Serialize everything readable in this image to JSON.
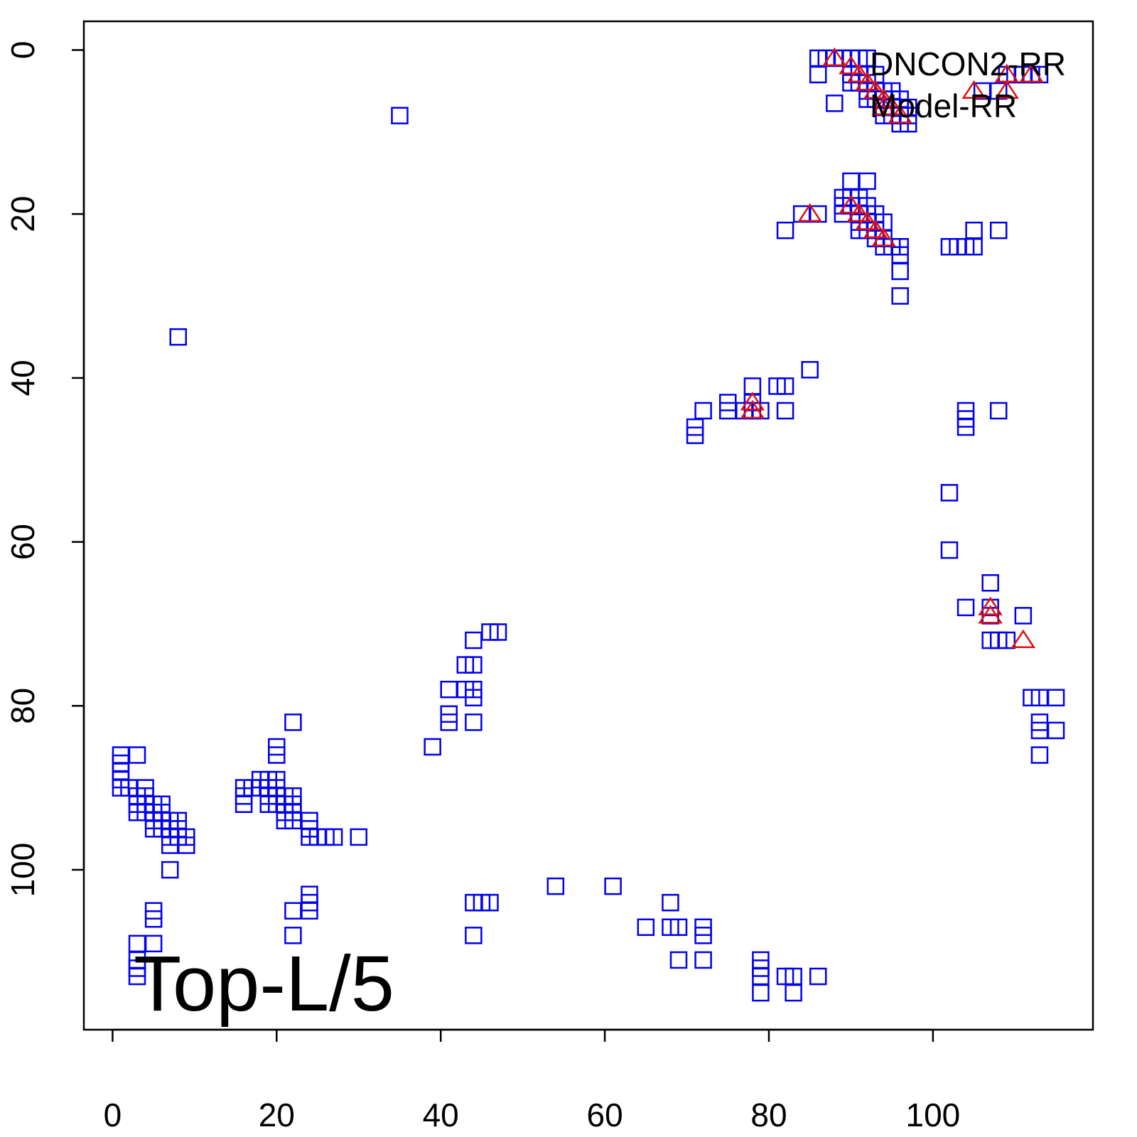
{
  "chart_data": {
    "type": "scatter",
    "title": "",
    "xlabel": "",
    "ylabel": "",
    "xlim": [
      -3.5,
      119.5
    ],
    "ylim": [
      -3.5,
      119.5
    ],
    "y_reversed": true,
    "grid": false,
    "x_ticks": [
      0,
      20,
      40,
      60,
      80,
      100
    ],
    "y_ticks": [
      0,
      20,
      40,
      60,
      80,
      100
    ],
    "legend": {
      "placement": "top-right",
      "entries": [
        "DNCON2-RR",
        "Model-RR"
      ]
    },
    "annotation": "Top-L/5",
    "colors": {
      "squares": "#0000ee",
      "triangles": "#e01010"
    },
    "series": [
      {
        "marker": "square",
        "points": [
          [
            35,
            8
          ],
          [
            8,
            35
          ],
          [
            86,
            1
          ],
          [
            87,
            1
          ],
          [
            88,
            1
          ],
          [
            89,
            1
          ],
          [
            90,
            1
          ],
          [
            91,
            1
          ],
          [
            92,
            1
          ],
          [
            86,
            3
          ],
          [
            90,
            3
          ],
          [
            91,
            3
          ],
          [
            93,
            3
          ],
          [
            90,
            4
          ],
          [
            91,
            4
          ],
          [
            92,
            4
          ],
          [
            93,
            5
          ],
          [
            92,
            5
          ],
          [
            94,
            5
          ],
          [
            95,
            5
          ],
          [
            92,
            6
          ],
          [
            93,
            6
          ],
          [
            94,
            6
          ],
          [
            95,
            6
          ],
          [
            96,
            6
          ],
          [
            88,
            6.5
          ],
          [
            94,
            7
          ],
          [
            95,
            7
          ],
          [
            96,
            7
          ],
          [
            97,
            7
          ],
          [
            94,
            8
          ],
          [
            95,
            8
          ],
          [
            96,
            8
          ],
          [
            97,
            8
          ],
          [
            96,
            9
          ],
          [
            97,
            9
          ],
          [
            109,
            3
          ],
          [
            110,
            3
          ],
          [
            111,
            3
          ],
          [
            112,
            3
          ],
          [
            113,
            3
          ],
          [
            106,
            5
          ],
          [
            108,
            5
          ],
          [
            90,
            16
          ],
          [
            92,
            16
          ],
          [
            89,
            18
          ],
          [
            90,
            18
          ],
          [
            91,
            18
          ],
          [
            89,
            19
          ],
          [
            90,
            19
          ],
          [
            92,
            19
          ],
          [
            89,
            20
          ],
          [
            91,
            20
          ],
          [
            92,
            20
          ],
          [
            93,
            20
          ],
          [
            84,
            20
          ],
          [
            86,
            20
          ],
          [
            91,
            21
          ],
          [
            92,
            21
          ],
          [
            94,
            21
          ],
          [
            91,
            22
          ],
          [
            92,
            22
          ],
          [
            93,
            22
          ],
          [
            82,
            22
          ],
          [
            93,
            23
          ],
          [
            94,
            23
          ],
          [
            94,
            24
          ],
          [
            95,
            24
          ],
          [
            96,
            24
          ],
          [
            96,
            25
          ],
          [
            96,
            27
          ],
          [
            96,
            30
          ],
          [
            102,
            24
          ],
          [
            103,
            24
          ],
          [
            104,
            24
          ],
          [
            105,
            24
          ],
          [
            105,
            22
          ],
          [
            108,
            22
          ],
          [
            85,
            39
          ],
          [
            78,
            41
          ],
          [
            81,
            41
          ],
          [
            82,
            41
          ],
          [
            75,
            43
          ],
          [
            78,
            43
          ],
          [
            75,
            44
          ],
          [
            72,
            44
          ],
          [
            77,
            44
          ],
          [
            78,
            44
          ],
          [
            79,
            44
          ],
          [
            82,
            44
          ],
          [
            71,
            46
          ],
          [
            71,
            47
          ],
          [
            104,
            44
          ],
          [
            104,
            45
          ],
          [
            104,
            46
          ],
          [
            108,
            44
          ],
          [
            102,
            54
          ],
          [
            102,
            61
          ],
          [
            107,
            65
          ],
          [
            104,
            68
          ],
          [
            107,
            68
          ],
          [
            107,
            69
          ],
          [
            111,
            69
          ],
          [
            107,
            72
          ],
          [
            108,
            72
          ],
          [
            109,
            72
          ],
          [
            112,
            79
          ],
          [
            113,
            79
          ],
          [
            115,
            79
          ],
          [
            113,
            82
          ],
          [
            113,
            83
          ],
          [
            115,
            83
          ],
          [
            113,
            86
          ],
          [
            44,
            72
          ],
          [
            46,
            71
          ],
          [
            47,
            71
          ],
          [
            43,
            75
          ],
          [
            44,
            75
          ],
          [
            41,
            78
          ],
          [
            43,
            78
          ],
          [
            44,
            78
          ],
          [
            44,
            79
          ],
          [
            41,
            81
          ],
          [
            41,
            82
          ],
          [
            44,
            82
          ],
          [
            39,
            85
          ],
          [
            1,
            86
          ],
          [
            3,
            86
          ],
          [
            1,
            87
          ],
          [
            1,
            88
          ],
          [
            1,
            89
          ],
          [
            1,
            90
          ],
          [
            2,
            90
          ],
          [
            4,
            90
          ],
          [
            3,
            91
          ],
          [
            4,
            91
          ],
          [
            3,
            92
          ],
          [
            4,
            92
          ],
          [
            5,
            92
          ],
          [
            6,
            92
          ],
          [
            3,
            93
          ],
          [
            4,
            93
          ],
          [
            5,
            93
          ],
          [
            6,
            93
          ],
          [
            5,
            94
          ],
          [
            6,
            94
          ],
          [
            7,
            94
          ],
          [
            8,
            94
          ],
          [
            5,
            95
          ],
          [
            6,
            95
          ],
          [
            7,
            95
          ],
          [
            8,
            95
          ],
          [
            7,
            96
          ],
          [
            8,
            96
          ],
          [
            9,
            96
          ],
          [
            7,
            97
          ],
          [
            9,
            97
          ],
          [
            7,
            100
          ],
          [
            20,
            85
          ],
          [
            20,
            86
          ],
          [
            18,
            89
          ],
          [
            19,
            89
          ],
          [
            20,
            89
          ],
          [
            16,
            90
          ],
          [
            17,
            90
          ],
          [
            18,
            90
          ],
          [
            19,
            90
          ],
          [
            20,
            90
          ],
          [
            16,
            91
          ],
          [
            19,
            91
          ],
          [
            20,
            91
          ],
          [
            21,
            91
          ],
          [
            22,
            91
          ],
          [
            16,
            92
          ],
          [
            19,
            92
          ],
          [
            20,
            92
          ],
          [
            21,
            92
          ],
          [
            22,
            92
          ],
          [
            21,
            93
          ],
          [
            22,
            93
          ],
          [
            21,
            94
          ],
          [
            22,
            94
          ],
          [
            24,
            94
          ],
          [
            24,
            95
          ],
          [
            24,
            96
          ],
          [
            25,
            96
          ],
          [
            26,
            96
          ],
          [
            27,
            96
          ],
          [
            30,
            96
          ],
          [
            22,
            82
          ],
          [
            5,
            105
          ],
          [
            5,
            106
          ],
          [
            3,
            109
          ],
          [
            5,
            109
          ],
          [
            3,
            111
          ],
          [
            3,
            112
          ],
          [
            3,
            113
          ],
          [
            22,
            105
          ],
          [
            24,
            103
          ],
          [
            24,
            104
          ],
          [
            24,
            105
          ],
          [
            22,
            108
          ],
          [
            44,
            104
          ],
          [
            45,
            104
          ],
          [
            46,
            104
          ],
          [
            44,
            108
          ],
          [
            54,
            102
          ],
          [
            61,
            102
          ],
          [
            68,
            104
          ],
          [
            65,
            107
          ],
          [
            68,
            107
          ],
          [
            69,
            107
          ],
          [
            72,
            107
          ],
          [
            72,
            108
          ],
          [
            69,
            111
          ],
          [
            72,
            111
          ],
          [
            79,
            111
          ],
          [
            79,
            112
          ],
          [
            79,
            113
          ],
          [
            82,
            113
          ],
          [
            83,
            113
          ],
          [
            86,
            113
          ],
          [
            79,
            115
          ],
          [
            83,
            115
          ]
        ]
      },
      {
        "marker": "triangle",
        "points": [
          [
            88,
            1
          ],
          [
            90,
            2
          ],
          [
            91,
            3
          ],
          [
            92,
            4
          ],
          [
            93,
            5
          ],
          [
            94,
            6
          ],
          [
            94,
            7
          ],
          [
            95,
            7
          ],
          [
            96,
            8
          ],
          [
            105,
            5
          ],
          [
            109,
            3
          ],
          [
            109,
            5
          ],
          [
            112,
            3
          ],
          [
            85,
            20
          ],
          [
            90,
            19
          ],
          [
            91,
            20
          ],
          [
            92,
            21
          ],
          [
            93,
            22
          ],
          [
            94,
            23
          ],
          [
            78,
            43
          ],
          [
            78,
            44
          ],
          [
            107,
            68
          ],
          [
            107,
            69
          ],
          [
            111,
            72
          ]
        ]
      }
    ]
  }
}
